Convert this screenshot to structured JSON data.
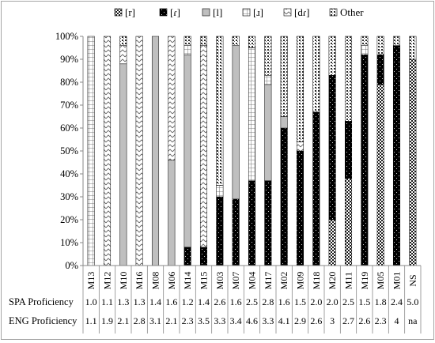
{
  "chart_data": {
    "type": "bar",
    "stacked": true,
    "percent": true,
    "categories": [
      "M13",
      "M12",
      "M10",
      "M16",
      "M08",
      "M06",
      "M14",
      "M15",
      "M03",
      "M07",
      "M04",
      "M17",
      "M02",
      "M09",
      "M18",
      "M20",
      "M11",
      "M19",
      "M05",
      "M01",
      "NS"
    ],
    "ylim": [
      0,
      100
    ],
    "yticks": [
      "0%",
      "10%",
      "20%",
      "30%",
      "40%",
      "50%",
      "60%",
      "70%",
      "80%",
      "90%",
      "100%"
    ],
    "grid": false,
    "legend_position": "top",
    "series": [
      {
        "name": "[r]",
        "pattern": "pat-checker",
        "values": [
          0,
          0,
          0,
          0,
          0,
          0,
          0,
          0,
          0,
          0,
          0,
          0,
          0,
          0,
          0,
          20,
          38,
          0,
          79,
          0,
          90
        ]
      },
      {
        "name": "[ɾ]",
        "pattern": "pat-dots-dark",
        "values": [
          0,
          0,
          0,
          0,
          0,
          0,
          8,
          8,
          30,
          29,
          37,
          37,
          60,
          50,
          67,
          63,
          25,
          92,
          13,
          96,
          0
        ]
      },
      {
        "name": "[l]",
        "pattern": "pat-gray",
        "values": [
          0,
          0,
          88,
          0,
          100,
          46,
          84,
          0,
          0,
          67,
          0,
          42,
          5,
          0,
          0,
          0,
          0,
          0,
          0,
          0,
          0
        ]
      },
      {
        "name": "[ɹ]",
        "pattern": "pat-grid",
        "values": [
          100,
          0,
          0,
          0,
          0,
          0,
          4,
          0,
          5,
          0,
          58,
          4,
          0,
          0,
          0,
          0,
          0,
          4,
          0,
          0,
          0
        ]
      },
      {
        "name": "[dɾ]",
        "pattern": "pat-zigzag",
        "values": [
          0,
          100,
          8,
          100,
          0,
          54,
          0,
          88,
          0,
          0,
          0,
          0,
          0,
          4,
          0,
          0,
          0,
          0,
          0,
          0,
          0
        ]
      },
      {
        "name": "Other",
        "pattern": "pat-dots-light",
        "values": [
          0,
          0,
          4,
          0,
          0,
          0,
          4,
          4,
          65,
          4,
          5,
          17,
          35,
          46,
          33,
          17,
          37,
          4,
          8,
          4,
          10
        ]
      }
    ],
    "rows": [
      {
        "label": "SPA Proficiency",
        "values": [
          "1.0",
          "1.1",
          "1.3",
          "1.3",
          "1.4",
          "1.6",
          "1.2",
          "1.4",
          "2.6",
          "1.6",
          "2.5",
          "2.8",
          "1.6",
          "1.5",
          "2.0",
          "2.0",
          "2.5",
          "1.5",
          "1.8",
          "2.4",
          "5.0"
        ]
      },
      {
        "label": "ENG Proficiency",
        "values": [
          "1.1",
          "1.9",
          "2.1",
          "2.8",
          "3.1",
          "2.1",
          "2.3",
          "3.5",
          "3.3",
          "3.4",
          "4.6",
          "3.3",
          "4.1",
          "2.9",
          "2.6",
          "3",
          "2.7",
          "2.6",
          "2.3",
          "4",
          "na"
        ]
      }
    ]
  }
}
